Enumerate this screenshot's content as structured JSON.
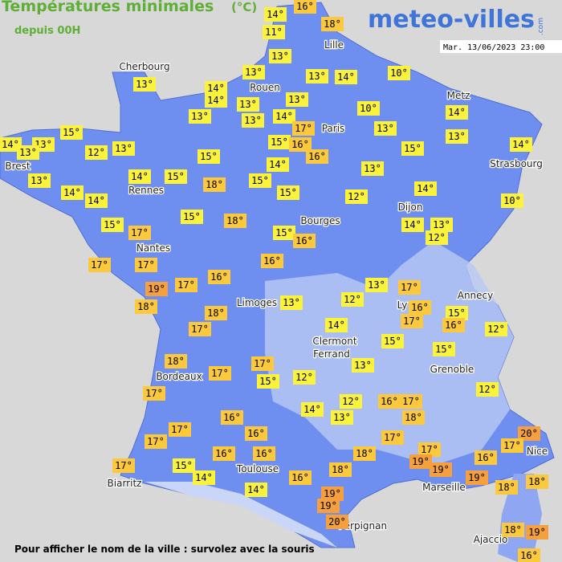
{
  "header": {
    "title": "Températures minimales",
    "unit": "(°C)",
    "subtitle": "depuis 00H",
    "logo": "meteo-villes",
    "logo_suffix": ".com",
    "date": "Mar. 13/06/2023 23:00"
  },
  "cities": [
    "Cherbourg",
    "Lille",
    "Rouen",
    "Metz",
    "Paris",
    "Brest",
    "Rennes",
    "Strasbourg",
    "Dijon",
    "Bourges",
    "Nantes",
    "Annecy",
    "Limoges",
    "Ly",
    "Clermont",
    "Ferrand",
    "Grenoble",
    "Bordeaux",
    "Nice",
    "Toulouse",
    "Marseille",
    "Biarritz",
    "Perpignan",
    "Ajaccio"
  ],
  "temperatures": [
    "14°",
    "16°",
    "11°",
    "18°",
    "13°",
    "13°",
    "13°",
    "13°",
    "14°",
    "10°",
    "14°",
    "14°",
    "13°",
    "13°",
    "10°",
    "14°",
    "13°",
    "13°",
    "14°",
    "17°",
    "13°",
    "13°",
    "15°",
    "14°",
    "13°",
    "13°",
    "12°",
    "13°",
    "15°",
    "16°",
    "15°",
    "14°",
    "15°",
    "16°",
    "14°",
    "13°",
    "13°",
    "14°",
    "15°",
    "18°",
    "15°",
    "14°",
    "14°",
    "15°",
    "12°",
    "14°",
    "10°",
    "15°",
    "18°",
    "15°",
    "17°",
    "14°",
    "13°",
    "15°",
    "16°",
    "12°",
    "17°",
    "17°",
    "16°",
    "16°",
    "17°",
    "19°",
    "13°",
    "17°",
    "12°",
    "13°",
    "18°",
    "16°",
    "15°",
    "18°",
    "17°",
    "16°",
    "14°",
    "12°",
    "17°",
    "15°",
    "15°",
    "18°",
    "13°",
    "17°",
    "17°",
    "12°",
    "15°",
    "17°",
    "12°",
    "12°",
    "16°",
    "17°",
    "14°",
    "13°",
    "18°",
    "16°",
    "20°",
    "17°",
    "16°",
    "17°",
    "17°",
    "17°",
    "17°",
    "18°",
    "16°",
    "16°",
    "19°",
    "16°",
    "17°",
    "15°",
    "18°",
    "19°",
    "14°",
    "16°",
    "19°",
    "18°",
    "18°",
    "14°",
    "19°",
    "19°",
    "20°",
    "18°",
    "19°",
    "16°"
  ],
  "footer": "Pour afficher le nom de la ville : survolez avec la souris"
}
